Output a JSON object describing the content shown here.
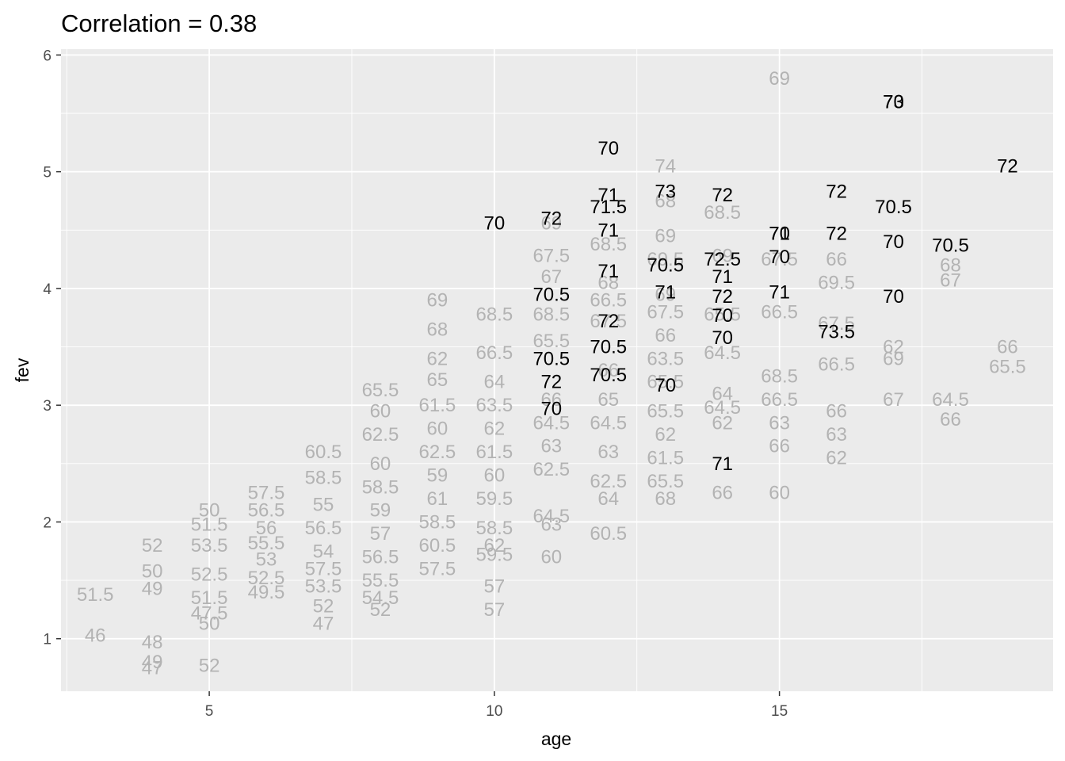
{
  "chart_data": {
    "type": "scatter",
    "title": "Correlation = 0.38",
    "xlabel": "age",
    "ylabel": "fev",
    "xlim": [
      2.4,
      19.8
    ],
    "ylim": [
      0.55,
      6.05
    ],
    "x_ticks": [
      5,
      10,
      15
    ],
    "y_ticks": [
      1,
      2,
      3,
      4,
      5,
      6
    ],
    "grid": true,
    "legend": "none",
    "colors": {
      "panel": "#ebebeb",
      "grid": "#ffffff",
      "muted": "#b3b3b3",
      "highlight": "#000000"
    },
    "series": [
      {
        "color": "#b3b3b3",
        "points": [
          {
            "x": 3,
            "y": 1.38,
            "label": "51.5"
          },
          {
            "x": 3,
            "y": 1.03,
            "label": "46"
          },
          {
            "x": 4,
            "y": 1.8,
            "label": "52"
          },
          {
            "x": 4,
            "y": 1.58,
            "label": "50"
          },
          {
            "x": 4,
            "y": 1.43,
            "label": "49"
          },
          {
            "x": 4,
            "y": 0.97,
            "label": "48"
          },
          {
            "x": 4,
            "y": 0.8,
            "label": "49"
          },
          {
            "x": 4,
            "y": 0.75,
            "label": "47"
          },
          {
            "x": 5,
            "y": 2.1,
            "label": "50"
          },
          {
            "x": 5,
            "y": 1.98,
            "label": "51.5"
          },
          {
            "x": 5,
            "y": 1.8,
            "label": "53.5"
          },
          {
            "x": 5,
            "y": 1.55,
            "label": "52.5"
          },
          {
            "x": 5,
            "y": 1.35,
            "label": "51.5"
          },
          {
            "x": 5,
            "y": 1.22,
            "label": "47.5"
          },
          {
            "x": 5,
            "y": 1.13,
            "label": "50"
          },
          {
            "x": 5,
            "y": 0.77,
            "label": "52"
          },
          {
            "x": 6,
            "y": 2.25,
            "label": "57.5"
          },
          {
            "x": 6,
            "y": 2.1,
            "label": "56.5"
          },
          {
            "x": 6,
            "y": 1.95,
            "label": "56"
          },
          {
            "x": 6,
            "y": 1.82,
            "label": "55.5"
          },
          {
            "x": 6,
            "y": 1.68,
            "label": "53"
          },
          {
            "x": 6,
            "y": 1.52,
            "label": "52.5"
          },
          {
            "x": 6,
            "y": 1.4,
            "label": "49.5"
          },
          {
            "x": 7,
            "y": 2.6,
            "label": "60.5"
          },
          {
            "x": 7,
            "y": 2.38,
            "label": "58.5"
          },
          {
            "x": 7,
            "y": 2.15,
            "label": "55"
          },
          {
            "x": 7,
            "y": 1.95,
            "label": "56.5"
          },
          {
            "x": 7,
            "y": 1.75,
            "label": "54"
          },
          {
            "x": 7,
            "y": 1.6,
            "label": "57.5"
          },
          {
            "x": 7,
            "y": 1.45,
            "label": "53.5"
          },
          {
            "x": 7,
            "y": 1.28,
            "label": "52"
          },
          {
            "x": 7,
            "y": 1.13,
            "label": "47"
          },
          {
            "x": 8,
            "y": 3.13,
            "label": "65.5"
          },
          {
            "x": 8,
            "y": 2.95,
            "label": "60"
          },
          {
            "x": 8,
            "y": 2.75,
            "label": "62.5"
          },
          {
            "x": 8,
            "y": 2.5,
            "label": "60"
          },
          {
            "x": 8,
            "y": 2.3,
            "label": "58.5"
          },
          {
            "x": 8,
            "y": 2.1,
            "label": "59"
          },
          {
            "x": 8,
            "y": 1.9,
            "label": "57"
          },
          {
            "x": 8,
            "y": 1.7,
            "label": "56.5"
          },
          {
            "x": 8,
            "y": 1.5,
            "label": "55.5"
          },
          {
            "x": 8,
            "y": 1.35,
            "label": "54.5"
          },
          {
            "x": 8,
            "y": 1.25,
            "label": "52"
          },
          {
            "x": 9,
            "y": 3.9,
            "label": "69"
          },
          {
            "x": 9,
            "y": 3.65,
            "label": "68"
          },
          {
            "x": 9,
            "y": 3.4,
            "label": "62"
          },
          {
            "x": 9,
            "y": 3.22,
            "label": "65"
          },
          {
            "x": 9,
            "y": 3.0,
            "label": "61.5"
          },
          {
            "x": 9,
            "y": 2.8,
            "label": "60"
          },
          {
            "x": 9,
            "y": 2.6,
            "label": "62.5"
          },
          {
            "x": 9,
            "y": 2.4,
            "label": "59"
          },
          {
            "x": 9,
            "y": 2.2,
            "label": "61"
          },
          {
            "x": 9,
            "y": 2.0,
            "label": "58.5"
          },
          {
            "x": 9,
            "y": 1.8,
            "label": "60.5"
          },
          {
            "x": 9,
            "y": 1.6,
            "label": "57.5"
          },
          {
            "x": 10,
            "y": 3.78,
            "label": "68.5"
          },
          {
            "x": 10,
            "y": 3.45,
            "label": "66.5"
          },
          {
            "x": 10,
            "y": 3.2,
            "label": "64"
          },
          {
            "x": 10,
            "y": 3.0,
            "label": "63.5"
          },
          {
            "x": 10,
            "y": 2.8,
            "label": "62"
          },
          {
            "x": 10,
            "y": 2.6,
            "label": "61.5"
          },
          {
            "x": 10,
            "y": 2.4,
            "label": "60"
          },
          {
            "x": 10,
            "y": 2.2,
            "label": "59.5"
          },
          {
            "x": 10,
            "y": 1.95,
            "label": "58.5"
          },
          {
            "x": 10,
            "y": 1.8,
            "label": "62"
          },
          {
            "x": 10,
            "y": 1.72,
            "label": "59.5"
          },
          {
            "x": 10,
            "y": 1.45,
            "label": "57"
          },
          {
            "x": 10,
            "y": 1.25,
            "label": "57"
          },
          {
            "x": 11,
            "y": 4.56,
            "label": "69"
          },
          {
            "x": 11,
            "y": 4.28,
            "label": "67.5"
          },
          {
            "x": 11,
            "y": 4.1,
            "label": "67"
          },
          {
            "x": 11,
            "y": 3.78,
            "label": "68.5"
          },
          {
            "x": 11,
            "y": 3.55,
            "label": "65.5"
          },
          {
            "x": 11,
            "y": 3.05,
            "label": "66"
          },
          {
            "x": 11,
            "y": 2.85,
            "label": "64.5"
          },
          {
            "x": 11,
            "y": 2.65,
            "label": "63"
          },
          {
            "x": 11,
            "y": 2.45,
            "label": "62.5"
          },
          {
            "x": 11,
            "y": 2.05,
            "label": "64.5"
          },
          {
            "x": 11,
            "y": 1.98,
            "label": "63"
          },
          {
            "x": 11,
            "y": 1.7,
            "label": "60"
          },
          {
            "x": 12,
            "y": 4.38,
            "label": "68.5"
          },
          {
            "x": 12,
            "y": 4.05,
            "label": "68"
          },
          {
            "x": 12,
            "y": 3.9,
            "label": "66.5"
          },
          {
            "x": 12,
            "y": 3.72,
            "label": "67.5"
          },
          {
            "x": 12,
            "y": 3.3,
            "label": "66"
          },
          {
            "x": 12,
            "y": 3.05,
            "label": "65"
          },
          {
            "x": 12,
            "y": 2.85,
            "label": "64.5"
          },
          {
            "x": 12,
            "y": 2.6,
            "label": "63"
          },
          {
            "x": 12,
            "y": 2.35,
            "label": "62.5"
          },
          {
            "x": 12,
            "y": 2.2,
            "label": "64"
          },
          {
            "x": 12,
            "y": 1.9,
            "label": "60.5"
          },
          {
            "x": 13,
            "y": 5.05,
            "label": "74"
          },
          {
            "x": 13,
            "y": 4.75,
            "label": "68"
          },
          {
            "x": 13,
            "y": 4.45,
            "label": "69"
          },
          {
            "x": 13,
            "y": 4.25,
            "label": "69.5"
          },
          {
            "x": 13,
            "y": 3.95,
            "label": "69"
          },
          {
            "x": 13,
            "y": 3.8,
            "label": "67.5"
          },
          {
            "x": 13,
            "y": 3.6,
            "label": "66"
          },
          {
            "x": 13,
            "y": 3.4,
            "label": "63.5"
          },
          {
            "x": 13,
            "y": 3.2,
            "label": "65.5"
          },
          {
            "x": 13,
            "y": 2.95,
            "label": "65.5"
          },
          {
            "x": 13,
            "y": 2.75,
            "label": "62"
          },
          {
            "x": 13,
            "y": 2.55,
            "label": "61.5"
          },
          {
            "x": 13,
            "y": 2.35,
            "label": "65.5"
          },
          {
            "x": 13,
            "y": 2.2,
            "label": "68"
          },
          {
            "x": 14,
            "y": 4.65,
            "label": "68.5"
          },
          {
            "x": 14,
            "y": 4.28,
            "label": "69"
          },
          {
            "x": 14,
            "y": 3.78,
            "label": "65.5"
          },
          {
            "x": 14,
            "y": 3.45,
            "label": "64.5"
          },
          {
            "x": 14,
            "y": 3.1,
            "label": "64"
          },
          {
            "x": 14,
            "y": 2.98,
            "label": "64.5"
          },
          {
            "x": 14,
            "y": 2.85,
            "label": "62"
          },
          {
            "x": 14,
            "y": 2.25,
            "label": "66"
          },
          {
            "x": 15,
            "y": 5.8,
            "label": "69"
          },
          {
            "x": 15,
            "y": 4.25,
            "label": "67.5"
          },
          {
            "x": 15,
            "y": 3.8,
            "label": "66.5"
          },
          {
            "x": 15,
            "y": 3.25,
            "label": "68.5"
          },
          {
            "x": 15,
            "y": 3.05,
            "label": "66.5"
          },
          {
            "x": 15,
            "y": 2.85,
            "label": "63"
          },
          {
            "x": 15,
            "y": 2.65,
            "label": "66"
          },
          {
            "x": 15,
            "y": 2.25,
            "label": "60"
          },
          {
            "x": 16,
            "y": 4.25,
            "label": "66"
          },
          {
            "x": 16,
            "y": 4.05,
            "label": "69.5"
          },
          {
            "x": 16,
            "y": 3.7,
            "label": "67.5"
          },
          {
            "x": 16,
            "y": 3.35,
            "label": "66.5"
          },
          {
            "x": 16,
            "y": 2.95,
            "label": "66"
          },
          {
            "x": 16,
            "y": 2.75,
            "label": "63"
          },
          {
            "x": 16,
            "y": 2.55,
            "label": "62"
          },
          {
            "x": 17,
            "y": 3.5,
            "label": "62"
          },
          {
            "x": 17,
            "y": 3.4,
            "label": "69"
          },
          {
            "x": 17,
            "y": 3.05,
            "label": "67"
          },
          {
            "x": 18,
            "y": 4.2,
            "label": "68"
          },
          {
            "x": 18,
            "y": 4.07,
            "label": "67"
          },
          {
            "x": 18,
            "y": 3.05,
            "label": "64.5"
          },
          {
            "x": 18,
            "y": 2.88,
            "label": "66"
          },
          {
            "x": 19,
            "y": 3.5,
            "label": "66"
          },
          {
            "x": 19,
            "y": 3.33,
            "label": "65.5"
          }
        ]
      },
      {
        "color": "#000000",
        "points": [
          {
            "x": 10,
            "y": 4.56,
            "label": "70"
          },
          {
            "x": 11,
            "y": 4.6,
            "label": "72"
          },
          {
            "x": 11,
            "y": 3.95,
            "label": "70.5"
          },
          {
            "x": 11,
            "y": 3.4,
            "label": "70.5"
          },
          {
            "x": 11,
            "y": 3.2,
            "label": "72"
          },
          {
            "x": 11,
            "y": 2.97,
            "label": "70"
          },
          {
            "x": 12,
            "y": 5.2,
            "label": "70"
          },
          {
            "x": 12,
            "y": 4.8,
            "label": "71"
          },
          {
            "x": 12,
            "y": 4.7,
            "label": "71.5"
          },
          {
            "x": 12,
            "y": 4.5,
            "label": "71"
          },
          {
            "x": 12,
            "y": 4.15,
            "label": "71"
          },
          {
            "x": 12,
            "y": 3.72,
            "label": "72"
          },
          {
            "x": 12,
            "y": 3.5,
            "label": "70.5"
          },
          {
            "x": 12,
            "y": 3.26,
            "label": "70.5"
          },
          {
            "x": 13,
            "y": 4.83,
            "label": "73"
          },
          {
            "x": 13,
            "y": 4.2,
            "label": "70.5"
          },
          {
            "x": 13,
            "y": 3.97,
            "label": "71"
          },
          {
            "x": 13,
            "y": 3.17,
            "label": "70"
          },
          {
            "x": 14,
            "y": 4.8,
            "label": "72"
          },
          {
            "x": 14,
            "y": 4.25,
            "label": "72.5"
          },
          {
            "x": 14,
            "y": 4.1,
            "label": "71"
          },
          {
            "x": 14,
            "y": 3.93,
            "label": "72"
          },
          {
            "x": 14,
            "y": 3.77,
            "label": "70"
          },
          {
            "x": 14,
            "y": 3.58,
            "label": "70"
          },
          {
            "x": 14,
            "y": 2.5,
            "label": "71"
          },
          {
            "x": 15,
            "y": 4.47,
            "label": "70"
          },
          {
            "x": 15,
            "y": 4.47,
            "label": "71"
          },
          {
            "x": 15,
            "y": 4.27,
            "label": "70"
          },
          {
            "x": 15,
            "y": 3.97,
            "label": "71"
          },
          {
            "x": 16,
            "y": 4.83,
            "label": "72"
          },
          {
            "x": 16,
            "y": 4.47,
            "label": "72"
          },
          {
            "x": 16,
            "y": 3.63,
            "label": "73.5"
          },
          {
            "x": 17,
            "y": 5.6,
            "label": "70"
          },
          {
            "x": 17,
            "y": 5.6,
            "label": "73"
          },
          {
            "x": 17,
            "y": 4.7,
            "label": "70.5"
          },
          {
            "x": 17,
            "y": 4.4,
            "label": "70"
          },
          {
            "x": 17,
            "y": 3.93,
            "label": "70"
          },
          {
            "x": 18,
            "y": 4.37,
            "label": "70.5"
          },
          {
            "x": 19,
            "y": 5.05,
            "label": "72"
          }
        ]
      }
    ]
  }
}
